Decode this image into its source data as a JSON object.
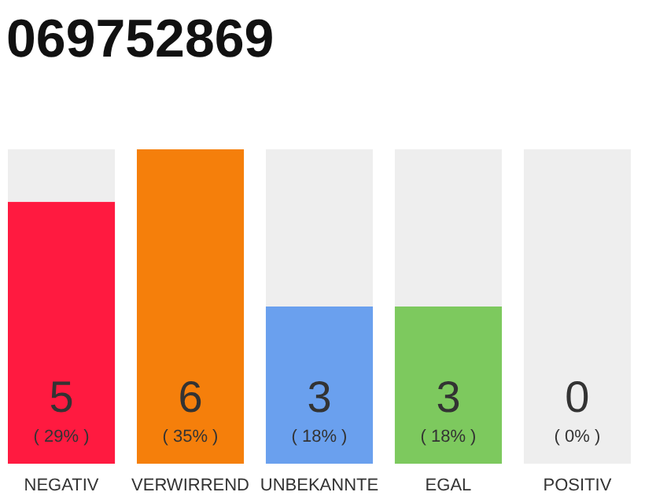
{
  "chart_data": {
    "type": "bar",
    "title": "069752869",
    "stacked": true,
    "categories": [
      "NEGATIV",
      "VERWIRREND",
      "UNBEKANNTE",
      "EGAL",
      "POSITIV"
    ],
    "series": [
      {
        "values": [
          5,
          6,
          3,
          3,
          0
        ],
        "colors": [
          "#ff1a40",
          "#f57f0b",
          "#6aa0ee",
          "#7dc95e",
          "#cccccc"
        ],
        "value_labels": [
          "5",
          "6",
          "3",
          "3",
          null
        ]
      },
      {
        "values": [
          1,
          0,
          3,
          3,
          6
        ],
        "color": "#eeeeee"
      }
    ],
    "ylim": [
      0,
      6
    ],
    "tick_labels": "x",
    "annotations": [
      "( 29% )",
      "( 35% )",
      "( 18% )",
      "( 18% )",
      "( 0% )",
      "0"
    ]
  }
}
